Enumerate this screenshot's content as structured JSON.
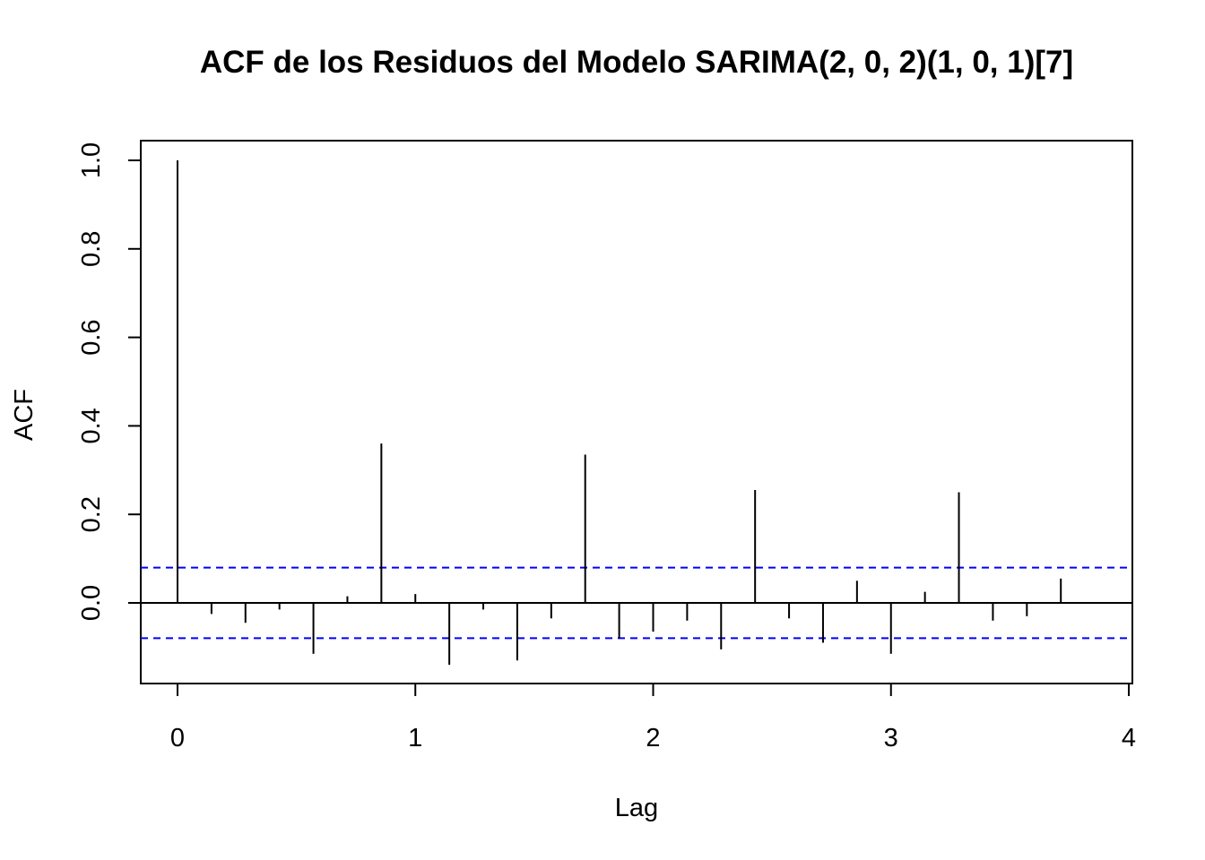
{
  "chart_data": {
    "type": "bar",
    "title": "ACF de los Residuos del Modelo SARIMA(2, 0, 2)(1, 0, 1)[7]",
    "xlabel": "Lag",
    "ylabel": "ACF",
    "xlim": [
      0,
      4
    ],
    "ylim": [
      -0.18,
      1.04
    ],
    "x_ticks": [
      "0",
      "1",
      "2",
      "3",
      "4"
    ],
    "y_ticks": [
      "0.0",
      "0.2",
      "0.4",
      "0.6",
      "0.8",
      "1.0"
    ],
    "lag_step": 0.142857,
    "values": [
      1.0,
      -0.025,
      -0.045,
      -0.015,
      -0.115,
      0.015,
      0.36,
      0.02,
      -0.14,
      -0.015,
      -0.13,
      -0.035,
      0.335,
      -0.08,
      -0.065,
      -0.04,
      -0.105,
      0.255,
      -0.035,
      -0.09,
      0.05,
      -0.115,
      0.025,
      0.25,
      -0.04,
      -0.03,
      0.055
    ],
    "confidence_bound": 0.0797,
    "bar_color": "#000000",
    "bound_color": "#0000ff",
    "grid": false,
    "legend": "none"
  }
}
